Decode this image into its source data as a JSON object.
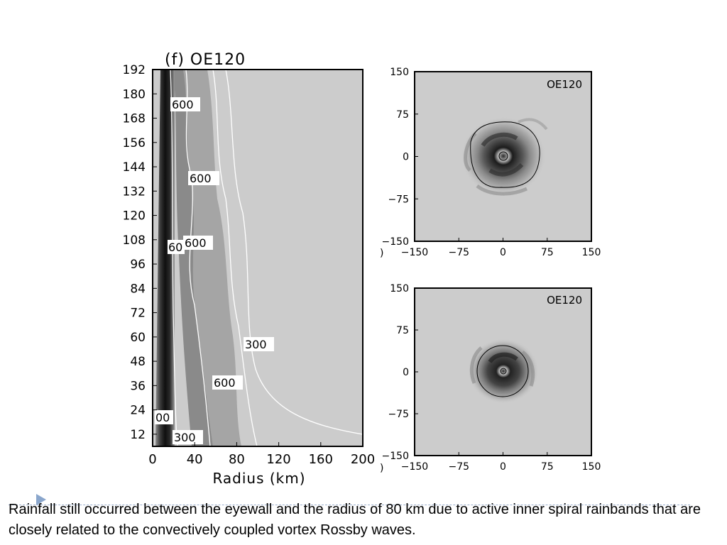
{
  "chart_data": [
    {
      "type": "heatmap",
      "title": "(f) OE120",
      "xlabel": "Radius (km)",
      "ylabel": "",
      "x_ticks": [
        "0",
        "40",
        "80",
        "120",
        "160",
        "200"
      ],
      "y_ticks": [
        "12",
        "24",
        "36",
        "48",
        "60",
        "72",
        "84",
        "96",
        "108",
        "120",
        "132",
        "144",
        "156",
        "168",
        "180",
        "192"
      ],
      "xlim": [
        0,
        200
      ],
      "ylim": [
        6,
        192
      ],
      "contour_labels": [
        "600",
        "600",
        "600",
        "60",
        "300",
        "600",
        "00",
        "300"
      ]
    },
    {
      "type": "heatmap",
      "title": "OE120",
      "xlim": [
        -150,
        150
      ],
      "ylim": [
        -150,
        150
      ],
      "x_ticks": [
        "−150",
        "−75",
        "0",
        "75",
        "150"
      ],
      "y_ticks": [
        "−150",
        "−75",
        "0",
        "75",
        "150"
      ]
    },
    {
      "type": "heatmap",
      "title": "OE120",
      "xlim": [
        -150,
        150
      ],
      "ylim": [
        -150,
        150
      ],
      "x_ticks": [
        "−150",
        "−75",
        "0",
        "75",
        "150"
      ],
      "y_ticks": [
        "−150",
        "−75",
        "0",
        "75",
        "150"
      ]
    }
  ],
  "caption": "Rainfall still occurred between the eyewall and the radius of 80 km due to active inner spiral rainbands that are closely related to the convectively coupled vortex Rossby waves.",
  "colors": {
    "background": "#cccccc",
    "eyewall": "#1a1a1a",
    "contour": "#ffffff",
    "marker": "#8aa6cc"
  }
}
